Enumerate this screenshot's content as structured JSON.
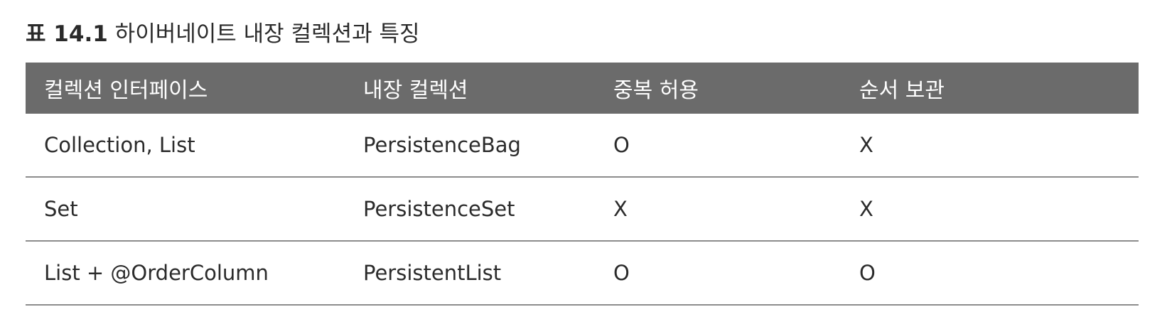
{
  "caption": {
    "number": "표 14.1",
    "title": "하이버네이트 내장 컬렉션과 특징"
  },
  "table": {
    "columns": [
      "컬렉션 인터페이스",
      "내장 컬렉션",
      "중복 허용",
      "순서 보관"
    ],
    "rows": [
      [
        "Collection, List",
        "PersistenceBag",
        "O",
        "X"
      ],
      [
        "Set",
        "PersistenceSet",
        "X",
        "X"
      ],
      [
        "List + @OrderColumn",
        "PersistentList",
        "O",
        "O"
      ]
    ]
  }
}
